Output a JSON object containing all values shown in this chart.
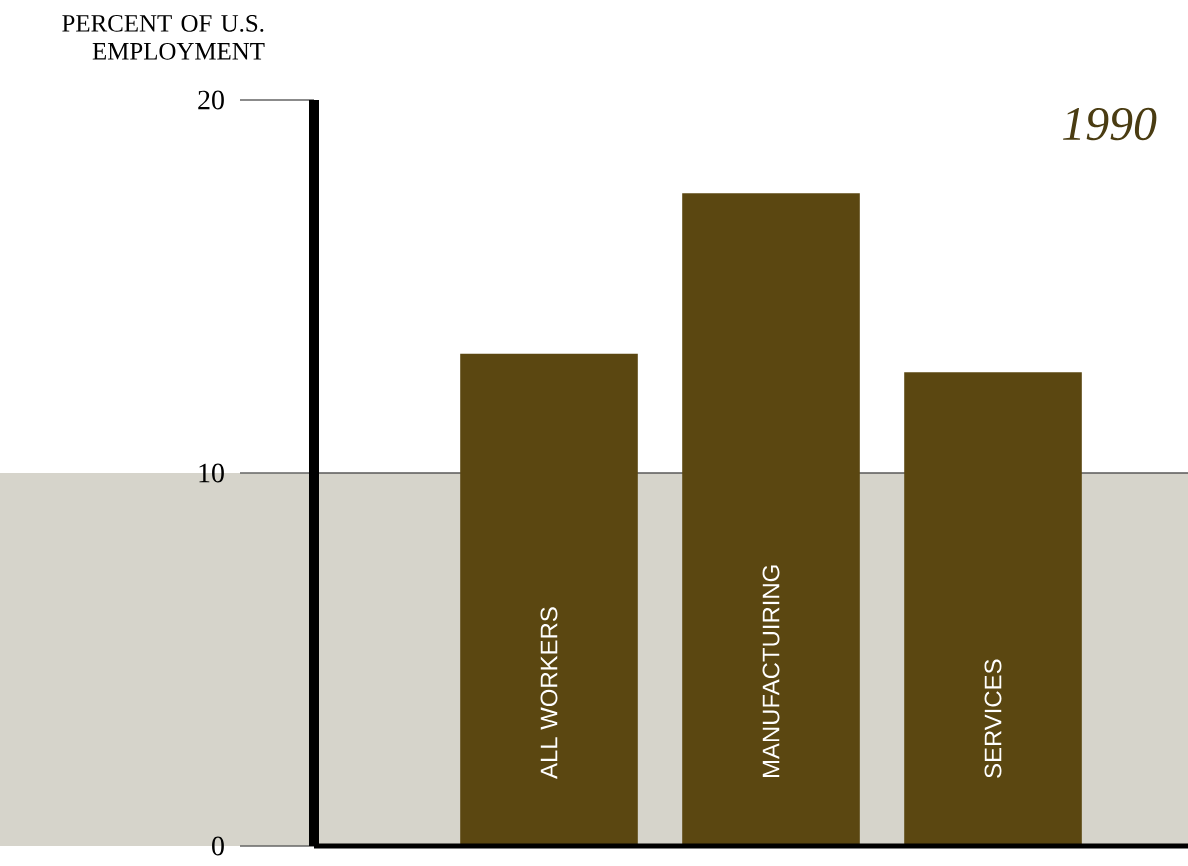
{
  "chart_data": {
    "type": "bar",
    "title": "1990",
    "ylabel": "PERCENT OF U.S. EMPLOYMENT",
    "categories": [
      "ALL WORKERS",
      "MANUFACTUIRING",
      "SERVICES"
    ],
    "values": [
      13.2,
      17.5,
      12.7
    ],
    "color": "#5b4711",
    "ylim": [
      0,
      20
    ],
    "yticks": [
      0,
      10,
      20
    ],
    "bands": [
      {
        "axis": "y",
        "from": 0,
        "to": 10,
        "color": "#d6d4cb"
      }
    ]
  }
}
